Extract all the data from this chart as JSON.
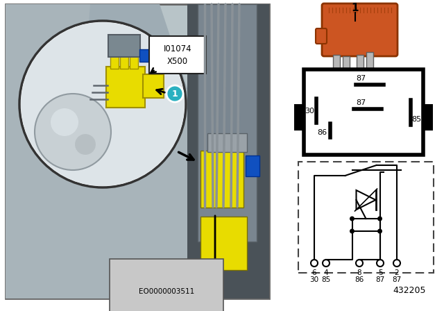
{
  "bg_color": "#ffffff",
  "diagram_code": "EO0000003511",
  "part_number": "432205",
  "label1": "1",
  "label_io1074": "I01074",
  "label_x500": "X500",
  "orange_relay_color": "#cc5522",
  "orange_relay_dark": "#8b3300",
  "teal_circle_color": "#2ab0c0",
  "yellow_color": "#e8dc00",
  "yellow_dark": "#a09000",
  "left_panel_border": "#666666",
  "left_bg_light": "#b8c4c8",
  "left_bg_mid": "#909aa0",
  "left_bg_dark": "#6a7278",
  "left_cavity_bg": "#4a5258",
  "circle_fill": "#dde4e8",
  "tank_color": "#c8cfd4",
  "pin_diagram_bg": "#ffffff",
  "circuit_bg": "#ffffff",
  "metal_pin_color": "#a0a0a0"
}
